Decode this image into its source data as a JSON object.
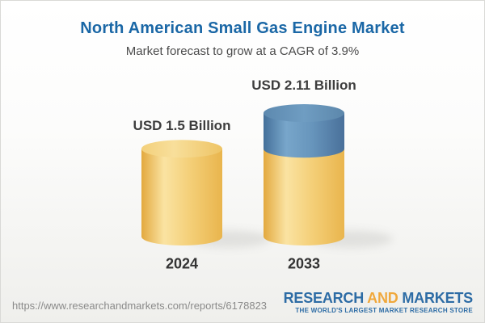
{
  "header": {
    "title": "North American Small Gas Engine Market",
    "subtitle": "Market forecast to grow at a CAGR of 3.9%"
  },
  "chart_data": {
    "type": "bar",
    "subtype": "3d-cylinder",
    "categories": [
      "2024",
      "2033"
    ],
    "values": [
      1.5,
      2.11
    ],
    "value_labels": [
      "USD 1.5 Billion",
      "USD 2.11 Billion"
    ],
    "unit": "USD Billion",
    "cagr_pct": 3.9,
    "series_note": "2033 cylinder is stacked: gold base equal to 2024 value plus blue growth segment on top",
    "segments_2033": {
      "base": 1.5,
      "growth": 0.61
    },
    "colors": {
      "base_gold": "#f0c25e",
      "growth_blue": "#6693b8",
      "label_text": "#3d3d3d"
    },
    "legend": null,
    "grid": false
  },
  "footer": {
    "url": "https://www.researchandmarkets.com/reports/6178823",
    "logo": {
      "word1": "RESEARCH",
      "word2": "AND",
      "word3": "MARKETS",
      "tagline": "THE WORLD'S LARGEST MARKET RESEARCH STORE"
    }
  },
  "theme": {
    "title_blue": "#1a67a6",
    "logo_blue": "#2d6ca5",
    "logo_gold": "#f0a83c"
  }
}
